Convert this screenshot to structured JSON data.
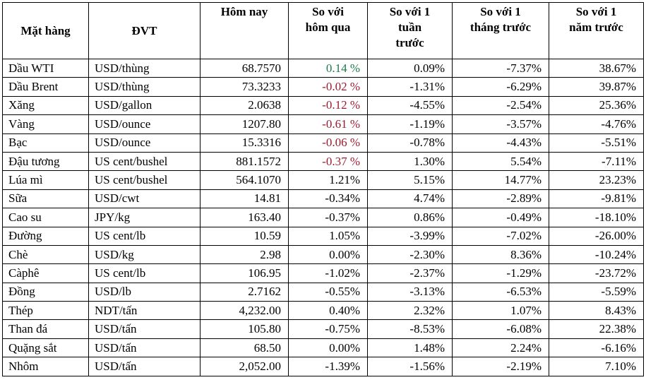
{
  "colors": {
    "green": "#1D7B4A",
    "red": "#9C1B2F",
    "black": "#000000",
    "border": "#000000",
    "background": "#ffffff"
  },
  "chart_data": {
    "type": "table",
    "columns": [
      {
        "key": "name",
        "label": "Mặt hàng",
        "align": "left"
      },
      {
        "key": "unit",
        "label": "ĐVT",
        "align": "left"
      },
      {
        "key": "today",
        "label": "Hôm nay",
        "align": "right"
      },
      {
        "key": "vs_yesterday",
        "label": "So với\nhôm qua",
        "align": "right"
      },
      {
        "key": "vs_week",
        "label": "So với 1\ntuần\ntrước",
        "align": "right"
      },
      {
        "key": "vs_month",
        "label": "So với 1\ntháng trước",
        "align": "right"
      },
      {
        "key": "vs_year",
        "label": "So với 1\nnăm trước",
        "align": "right"
      }
    ],
    "rows": [
      {
        "name": "Dầu WTI",
        "unit": "USD/thùng",
        "today": "68.7570",
        "vs_yesterday": "0.14 %",
        "vs_yesterday_color": "green",
        "vs_week": "0.09%",
        "vs_month": "-7.37%",
        "vs_year": "38.67%"
      },
      {
        "name": "Dầu Brent",
        "unit": "USD/thùng",
        "today": "73.3233",
        "vs_yesterday": "-0.02 %",
        "vs_yesterday_color": "red",
        "vs_week": "-1.31%",
        "vs_month": "-6.29%",
        "vs_year": "39.87%"
      },
      {
        "name": "Xăng",
        "unit": "USD/gallon",
        "today": "2.0638",
        "vs_yesterday": "-0.12 %",
        "vs_yesterday_color": "red",
        "vs_week": "-4.55%",
        "vs_month": "-2.54%",
        "vs_year": "25.36%"
      },
      {
        "name": "Vàng",
        "unit": "USD/ounce",
        "today": "1207.80",
        "vs_yesterday": "-0.61 %",
        "vs_yesterday_color": "red",
        "vs_week": "-1.19%",
        "vs_month": "-3.57%",
        "vs_year": "-4.76%"
      },
      {
        "name": "Bạc",
        "unit": "USD/ounce",
        "today": "15.3316",
        "vs_yesterday": "-0.06 %",
        "vs_yesterday_color": "red",
        "vs_week": "-0.78%",
        "vs_month": "-4.43%",
        "vs_year": "-5.51%"
      },
      {
        "name": "Đậu tương",
        "unit": "US cent/bushel",
        "today": "881.1572",
        "vs_yesterday": "-0.37 %",
        "vs_yesterday_color": "red",
        "vs_week": "1.30%",
        "vs_month": "5.54%",
        "vs_year": "-7.11%"
      },
      {
        "name": "Lúa mì",
        "unit": "US cent/bushel",
        "today": "564.1070",
        "vs_yesterday": "1.21%",
        "vs_yesterday_color": "black",
        "vs_week": "5.15%",
        "vs_month": "14.77%",
        "vs_year": "23.23%"
      },
      {
        "name": "Sữa",
        "unit": "USD/cwt",
        "today": "14.81",
        "vs_yesterday": "-0.34%",
        "vs_yesterday_color": "black",
        "vs_week": "4.74%",
        "vs_month": "-2.89%",
        "vs_year": "-9.81%"
      },
      {
        "name": "Cao su",
        "unit": "JPY/kg",
        "today": "163.40",
        "vs_yesterday": "-0.37%",
        "vs_yesterday_color": "black",
        "vs_week": "0.86%",
        "vs_month": "-0.49%",
        "vs_year": "-18.10%"
      },
      {
        "name": "Đường",
        "unit": "US cent/lb",
        "today": "10.59",
        "vs_yesterday": "1.05%",
        "vs_yesterday_color": "black",
        "vs_week": "-3.99%",
        "vs_month": "-7.02%",
        "vs_year": "-26.00%"
      },
      {
        "name": "Chè",
        "unit": "USD/kg",
        "today": "2.98",
        "vs_yesterday": "0.00%",
        "vs_yesterday_color": "black",
        "vs_week": "-2.30%",
        "vs_month": "8.36%",
        "vs_year": "-10.24%"
      },
      {
        "name": "Càphê",
        "unit": "US cent/lb",
        "today": "106.95",
        "vs_yesterday": "-1.02%",
        "vs_yesterday_color": "black",
        "vs_week": "-2.37%",
        "vs_month": "-1.29%",
        "vs_year": "-23.72%"
      },
      {
        "name": "Đồng",
        "unit": "USD/lb",
        "today": "2.7162",
        "vs_yesterday": "-0.55%",
        "vs_yesterday_color": "black",
        "vs_week": "-3.13%",
        "vs_month": "-6.53%",
        "vs_year": "-5.59%"
      },
      {
        "name": "Thép",
        "unit": "NDT/tấn",
        "today": "4,232.00",
        "vs_yesterday": "0.40%",
        "vs_yesterday_color": "black",
        "vs_week": "2.32%",
        "vs_month": "1.07%",
        "vs_year": "8.43%"
      },
      {
        "name": "Than đá",
        "unit": "USD/tấn",
        "today": "105.80",
        "vs_yesterday": "-0.75%",
        "vs_yesterday_color": "black",
        "vs_week": "-8.53%",
        "vs_month": "-6.08%",
        "vs_year": "22.38%"
      },
      {
        "name": "Quặng sắt",
        "unit": "USD/tấn",
        "today": "68.50",
        "vs_yesterday": "0.00%",
        "vs_yesterday_color": "black",
        "vs_week": "1.48%",
        "vs_month": "2.24%",
        "vs_year": "-6.16%"
      },
      {
        "name": "Nhôm",
        "unit": "USD/tấn",
        "today": "2,052.00",
        "vs_yesterday": "-1.39%",
        "vs_yesterday_color": "black",
        "vs_week": "-1.56%",
        "vs_month": "-2.19%",
        "vs_year": "7.10%"
      }
    ]
  }
}
